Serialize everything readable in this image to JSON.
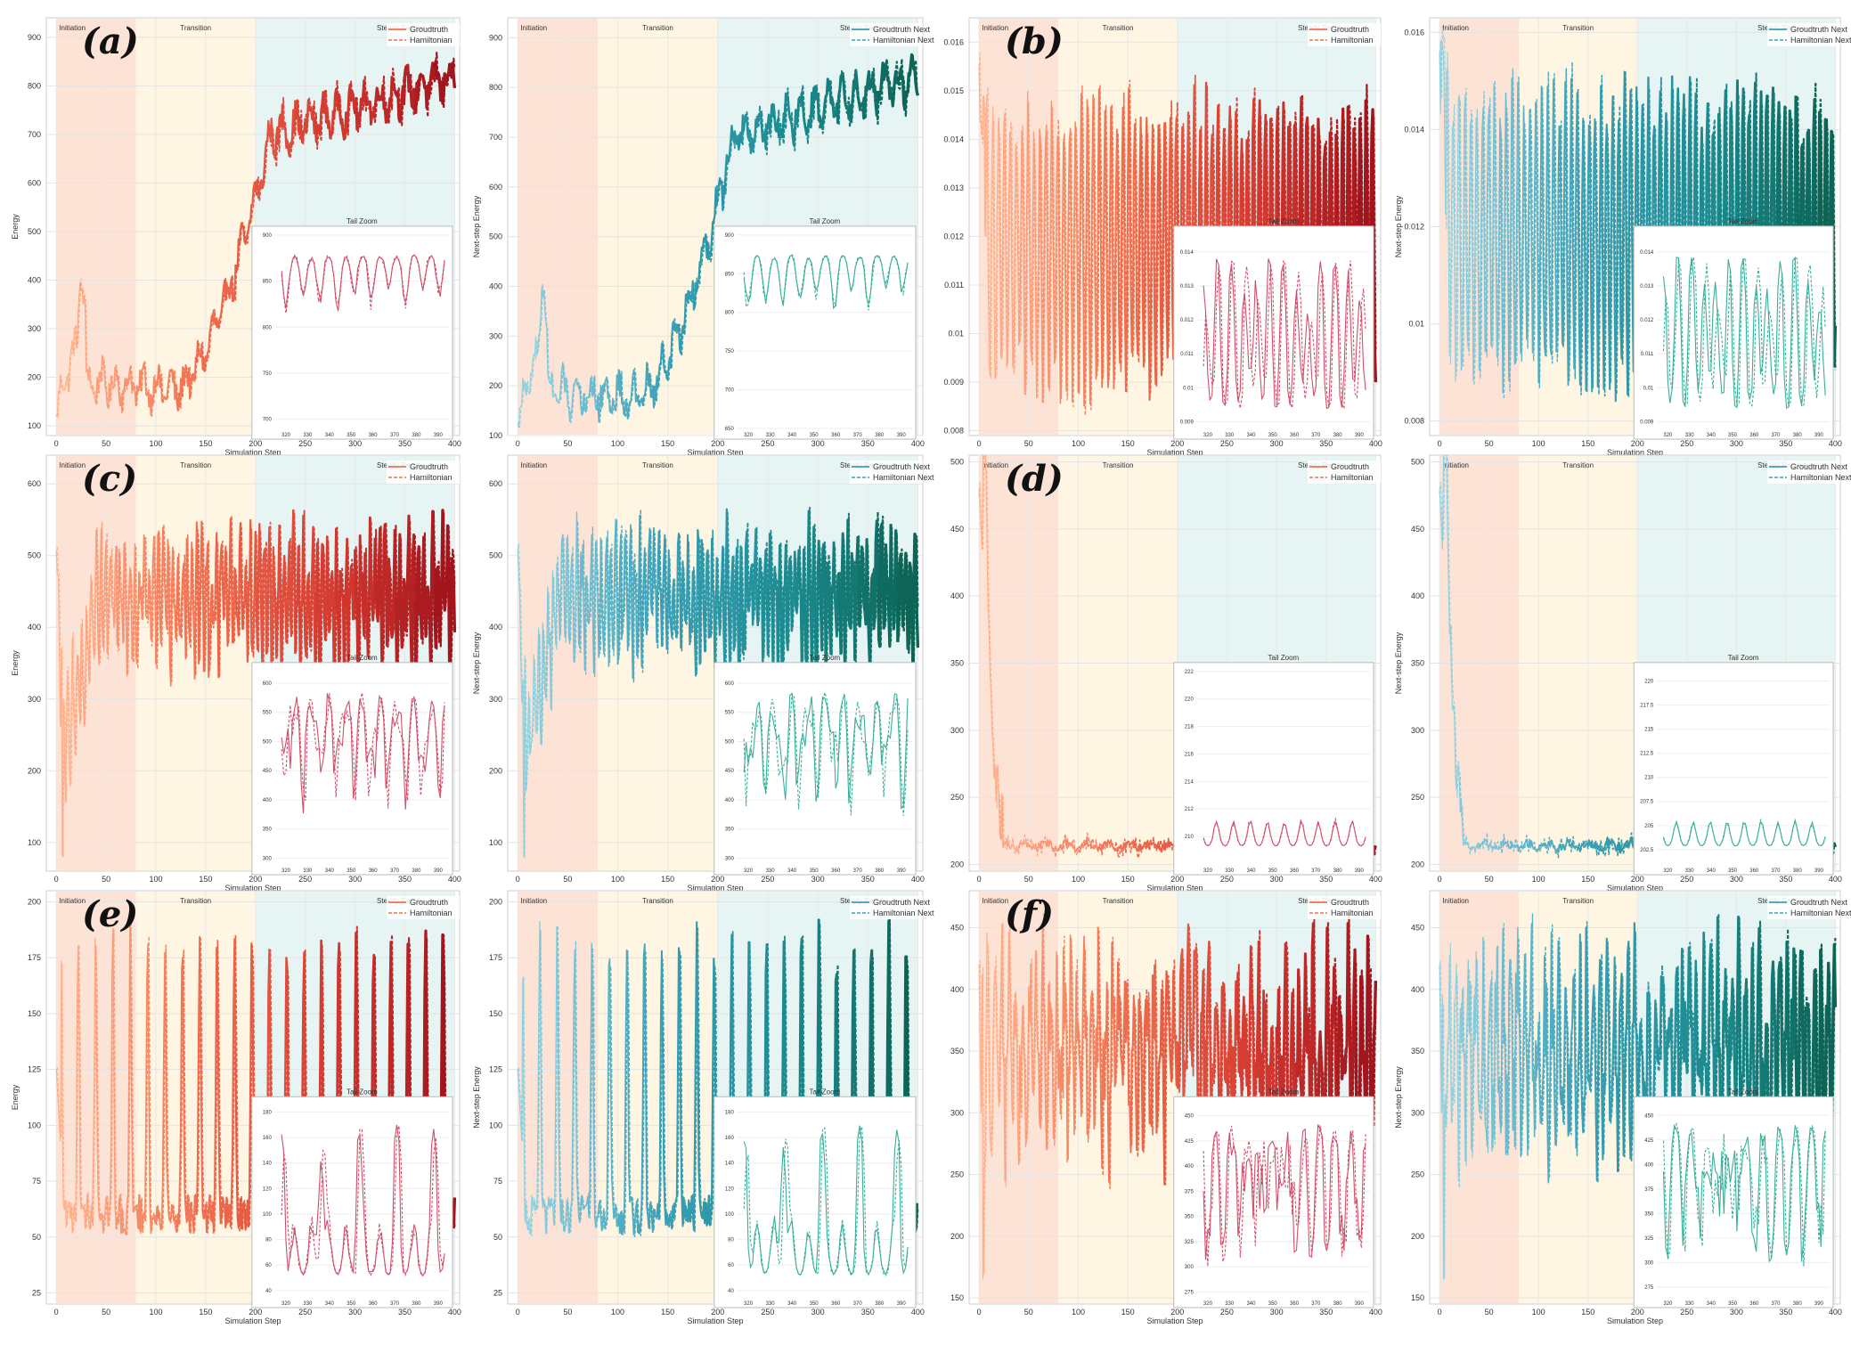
{
  "chart_data": {
    "type": "line",
    "regime_labels": [
      "Initiation",
      "Transition",
      "Steady Regime"
    ],
    "regime_bounds": [
      0,
      80,
      200,
      400
    ],
    "inset_title": "Tail Zoom",
    "xlabel": "Simulation Step",
    "x_ticks": [
      0,
      50,
      100,
      150,
      200,
      250,
      300,
      350,
      400
    ],
    "xlim": [
      -10,
      405
    ],
    "palettes": {
      "red": [
        "#ffb08a",
        "#f07050",
        "#d43a30",
        "#9a0f1a"
      ],
      "teal": [
        "#8fd0e0",
        "#3aa0b8",
        "#1b8a8e",
        "#0a5e4c"
      ],
      "inset_red": "#d0506a",
      "inset_teal": "#3aaf9a"
    },
    "regime_colors": {
      "initiation": "#fde3d6",
      "transition": "#fef5e2",
      "steady": "#e6f4f4",
      "initiation_text": "#c46a3a",
      "transition_text": "#a89430",
      "steady_text": "#3a8a7a"
    },
    "panels": [
      {
        "letter": "(a)",
        "ylabel": "Energy",
        "palette": "red",
        "legend": [
          "Groudtruth",
          "Hamiltonian"
        ],
        "ylim": [
          80,
          940
        ],
        "yticks": [
          100,
          200,
          300,
          400,
          500,
          600,
          700,
          800,
          900
        ],
        "profile": "rise_a",
        "inset": {
          "ylim": [
            690,
            900
          ],
          "yticks": [
            700,
            750,
            800,
            850,
            900
          ],
          "xticks": [
            320,
            330,
            340,
            350,
            360,
            370,
            380,
            390
          ]
        }
      },
      {
        "letter": "",
        "ylabel": "Next-step Energy",
        "palette": "teal",
        "legend": [
          "Groudtruth Next",
          "Hamiltonian Next"
        ],
        "ylim": [
          100,
          940
        ],
        "yticks": [
          100,
          200,
          300,
          400,
          500,
          600,
          700,
          800,
          900
        ],
        "profile": "rise_a",
        "inset": {
          "ylim": [
            650,
            900
          ],
          "yticks": [
            650,
            700,
            750,
            800,
            850,
            900
          ],
          "xticks": [
            320,
            330,
            340,
            350,
            360,
            370,
            380,
            390
          ]
        }
      },
      {
        "letter": "(b)",
        "ylabel": "",
        "palette": "red",
        "legend": [
          "Groudtruth",
          "Hamiltonian"
        ],
        "ylim": [
          0.0079,
          0.0165
        ],
        "yticks": [
          0.008,
          0.009,
          0.01,
          0.011,
          0.012,
          0.013,
          0.014,
          0.015,
          0.016
        ],
        "profile": "osc_b",
        "inset": {
          "ylim": [
            0.0088,
            0.0145
          ],
          "yticks": [
            0.009,
            0.01,
            0.011,
            0.012,
            0.013,
            0.014
          ],
          "xticks": [
            320,
            330,
            340,
            350,
            360,
            370,
            380,
            390
          ]
        }
      },
      {
        "letter": "",
        "ylabel": "Next-step Energy",
        "palette": "teal",
        "legend": [
          "Groudtruth Next",
          "Hamiltonian Next"
        ],
        "ylim": [
          0.0077,
          0.0163
        ],
        "yticks": [
          0.008,
          0.01,
          0.012,
          0.014,
          0.016
        ],
        "profile": "osc_b",
        "inset": {
          "ylim": [
            0.0088,
            0.0145
          ],
          "yticks": [
            0.009,
            0.01,
            0.011,
            0.012,
            0.013,
            0.014
          ],
          "xticks": [
            320,
            330,
            340,
            350,
            360,
            370,
            380,
            390
          ]
        }
      },
      {
        "letter": "(c)",
        "ylabel": "Energy",
        "palette": "red",
        "legend": [
          "Groudtruth",
          "Hamiltonian"
        ],
        "ylim": [
          60,
          640
        ],
        "yticks": [
          100,
          200,
          300,
          400,
          500,
          600
        ],
        "profile": "noisy_c",
        "inset": {
          "ylim": [
            290,
            620
          ],
          "yticks": [
            300,
            350,
            400,
            450,
            500,
            550,
            600
          ],
          "xticks": [
            320,
            330,
            340,
            350,
            360,
            370,
            380,
            390
          ]
        }
      },
      {
        "letter": "",
        "ylabel": "Next-step Energy",
        "palette": "teal",
        "legend": [
          "Groudtruth Next",
          "Hamiltonian Next"
        ],
        "ylim": [
          60,
          640
        ],
        "yticks": [
          100,
          200,
          300,
          400,
          500,
          600
        ],
        "profile": "noisy_c",
        "inset": {
          "ylim": [
            290,
            620
          ],
          "yticks": [
            300,
            350,
            400,
            450,
            500,
            550,
            600
          ],
          "xticks": [
            320,
            330,
            340,
            350,
            360,
            370,
            380,
            390
          ]
        }
      },
      {
        "letter": "(d)",
        "ylabel": "",
        "palette": "red",
        "legend": [
          "Groudtruth",
          "Hamiltonian"
        ],
        "ylim": [
          195,
          505
        ],
        "yticks": [
          200,
          250,
          300,
          350,
          400,
          450,
          500
        ],
        "profile": "decay_d",
        "inset": {
          "ylim": [
            208,
            222
          ],
          "yticks": [
            210,
            212,
            214,
            216,
            218,
            220,
            222
          ],
          "xticks": [
            320,
            330,
            340,
            350,
            360,
            370,
            380,
            390
          ]
        }
      },
      {
        "letter": "",
        "ylabel": "Next-step Energy",
        "palette": "teal",
        "legend": [
          "Groudtruth Next",
          "Hamiltonian Next"
        ],
        "ylim": [
          195,
          505
        ],
        "yticks": [
          200,
          250,
          300,
          350,
          400,
          450,
          500
        ],
        "profile": "decay_d",
        "inset": {
          "ylim": [
            201,
            221
          ],
          "yticks": [
            202.5,
            205,
            207.5,
            210,
            212.5,
            215,
            217.5,
            220
          ],
          "xticks": [
            320,
            330,
            340,
            350,
            360,
            370,
            380,
            390
          ]
        }
      },
      {
        "letter": "(e)",
        "ylabel": "Energy",
        "palette": "red",
        "legend": [
          "Groudtruth",
          "Hamiltonian"
        ],
        "ylim": [
          20,
          205
        ],
        "yticks": [
          25,
          50,
          75,
          100,
          125,
          150,
          175,
          200
        ],
        "profile": "spiky_e",
        "inset": {
          "ylim": [
            35,
            185
          ],
          "yticks": [
            40,
            60,
            80,
            100,
            120,
            140,
            160,
            180
          ],
          "xticks": [
            320,
            330,
            340,
            350,
            360,
            370,
            380,
            390
          ]
        }
      },
      {
        "letter": "",
        "ylabel": "Next-step Energy",
        "palette": "teal",
        "legend": [
          "Groudtruth Next",
          "Hamiltonian Next"
        ],
        "ylim": [
          20,
          205
        ],
        "yticks": [
          25,
          50,
          75,
          100,
          125,
          150,
          175,
          200
        ],
        "profile": "spiky_e",
        "inset": {
          "ylim": [
            35,
            185
          ],
          "yticks": [
            40,
            60,
            80,
            100,
            120,
            140,
            160,
            180
          ],
          "xticks": [
            320,
            330,
            340,
            350,
            360,
            370,
            380,
            390
          ]
        }
      },
      {
        "letter": "(f)",
        "ylabel": "",
        "palette": "red",
        "legend": [
          "Groudtruth",
          "Hamiltonian"
        ],
        "ylim": [
          145,
          480
        ],
        "yticks": [
          150,
          200,
          250,
          300,
          350,
          400,
          450
        ],
        "profile": "noisy_f",
        "inset": {
          "ylim": [
            270,
            460
          ],
          "yticks": [
            275,
            300,
            325,
            350,
            375,
            400,
            425,
            450
          ],
          "xticks": [
            320,
            330,
            340,
            350,
            360,
            370,
            380,
            390
          ]
        }
      },
      {
        "letter": "",
        "ylabel": "Next-step Energy",
        "palette": "teal",
        "legend": [
          "Groudtruth Next",
          "Hamiltonian Next"
        ],
        "ylim": [
          145,
          480
        ],
        "yticks": [
          150,
          200,
          250,
          300,
          350,
          400,
          450
        ],
        "profile": "noisy_f",
        "inset": {
          "ylim": [
            265,
            460
          ],
          "yticks": [
            275,
            300,
            325,
            350,
            375,
            400,
            425,
            450
          ],
          "xticks": [
            320,
            330,
            340,
            350,
            360,
            370,
            380,
            390
          ]
        }
      }
    ]
  }
}
